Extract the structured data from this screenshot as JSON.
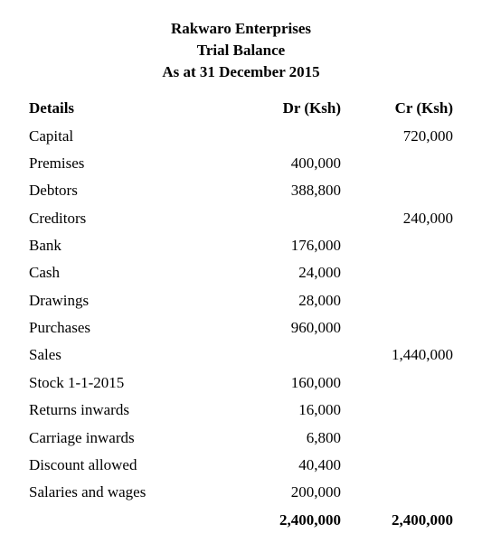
{
  "header": {
    "company": "Rakwaro Enterprises",
    "report": "Trial Balance",
    "asAt": "As at 31 December 2015"
  },
  "columns": {
    "details": "Details",
    "dr": "Dr  (Ksh)",
    "cr": "Cr  (Ksh)"
  },
  "rows": [
    {
      "label": "Capital",
      "dr": "",
      "cr": "720,000"
    },
    {
      "label": "Premises",
      "dr": "400,000",
      "cr": ""
    },
    {
      "label": "Debtors",
      "dr": "388,800",
      "cr": ""
    },
    {
      "label": "Creditors",
      "dr": "",
      "cr": "240,000"
    },
    {
      "label": "Bank",
      "dr": "176,000",
      "cr": ""
    },
    {
      "label": "Cash",
      "dr": "24,000",
      "cr": ""
    },
    {
      "label": "Drawings",
      "dr": "28,000",
      "cr": ""
    },
    {
      "label": "Purchases",
      "dr": "960,000",
      "cr": ""
    },
    {
      "label": "Sales",
      "dr": "",
      "cr": "1,440,000"
    },
    {
      "label": "Stock 1-1-2015",
      "dr": "160,000",
      "cr": ""
    },
    {
      "label": "Returns inwards",
      "dr": "16,000",
      "cr": ""
    },
    {
      "label": "Carriage inwards",
      "dr": "6,800",
      "cr": ""
    },
    {
      "label": "Discount allowed",
      "dr": "40,400",
      "cr": ""
    },
    {
      "label": "Salaries and wages",
      "dr": "200,000",
      "cr": ""
    }
  ],
  "totals": {
    "dr": "2,400,000",
    "cr": "2,400,000"
  },
  "style": {
    "background_color": "#ffffff",
    "text_color": "#000000",
    "font_family": "Times New Roman",
    "base_fontsize_pt": 12,
    "header_bold": true
  }
}
